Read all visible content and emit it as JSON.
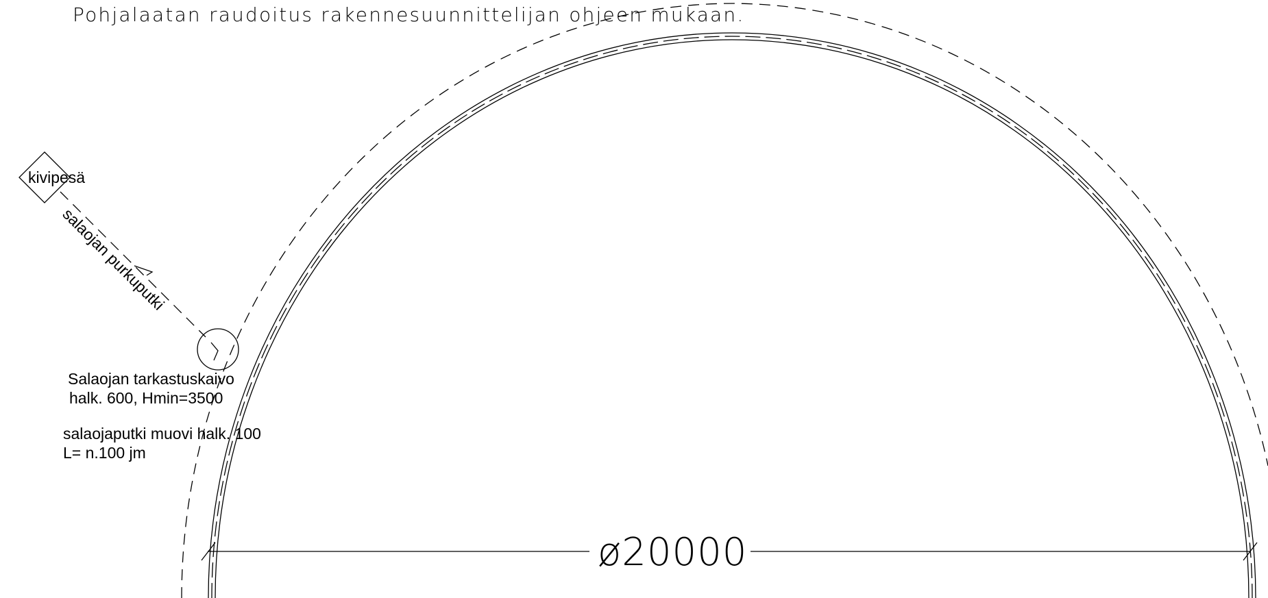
{
  "drawing": {
    "top_note": "Pohjalaatan raudoitus rakennesuunnittelijan ohjeen mukaan.",
    "stone_pit_label": "kivipesä",
    "outlet_pipe_label": "salaojan purkuputki",
    "inspection_well_label_line1": "Salaojan tarkastuskaivo",
    "inspection_well_label_line2": "halk. 600, Hmin=3500",
    "drain_pipe_label_line1": "salaojaputki muovi halk. 100",
    "drain_pipe_label_line2": "L= n.100 jm",
    "diameter_dimension": "ø20000"
  }
}
